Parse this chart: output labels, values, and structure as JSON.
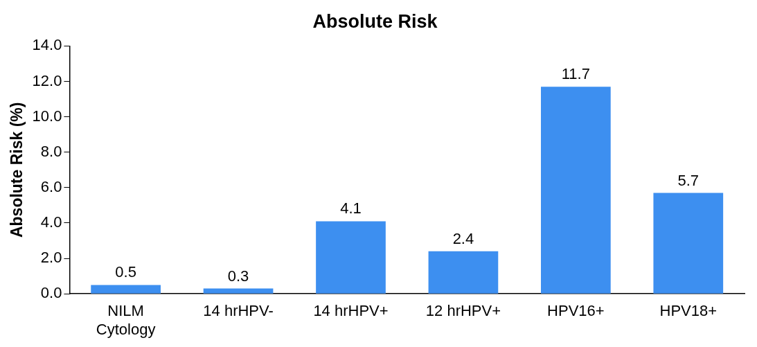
{
  "chart_data": {
    "type": "bar",
    "title": "Absolute Risk",
    "ylabel": "Absolute Risk (%)",
    "categories": [
      "NILM Cytology",
      "14 hrHPV-",
      "14 hrHPV+",
      "12 hrHPV+",
      "HPV16+",
      "HPV18+"
    ],
    "values": [
      0.5,
      0.3,
      4.1,
      2.4,
      11.7,
      5.7
    ],
    "color": "#3d8ff0",
    "ylim": [
      0,
      14
    ],
    "yticks": [
      {
        "value": 0,
        "label": "0.0"
      },
      {
        "value": 2,
        "label": "2.0"
      },
      {
        "value": 4,
        "label": "4.0"
      },
      {
        "value": 6,
        "label": "6.0"
      },
      {
        "value": 8,
        "label": "8.0"
      },
      {
        "value": 10,
        "label": "10.0"
      },
      {
        "value": 12,
        "label": "12.0"
      },
      {
        "value": 14,
        "label": "14.0"
      }
    ],
    "data_labels": true,
    "grid": false,
    "legend": false
  }
}
